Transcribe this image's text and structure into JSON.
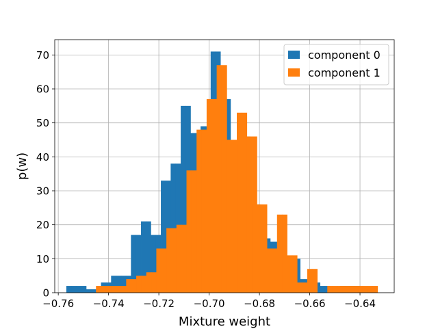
{
  "chart_data": {
    "type": "bar",
    "subtype": "histogram",
    "title": "",
    "xlabel": "Mixture weight",
    "ylabel": "p(w)",
    "xlim": [
      -0.7614,
      -0.6264
    ],
    "ylim": [
      0,
      74.5
    ],
    "grid": true,
    "legend_position": "top-right",
    "x_ticks": [
      {
        "value": -0.76,
        "label": "−0.76"
      },
      {
        "value": -0.74,
        "label": "−0.74"
      },
      {
        "value": -0.72,
        "label": "−0.72"
      },
      {
        "value": -0.7,
        "label": "−0.70"
      },
      {
        "value": -0.68,
        "label": "−0.68"
      },
      {
        "value": -0.66,
        "label": "−0.66"
      },
      {
        "value": -0.64,
        "label": "−0.64"
      }
    ],
    "y_ticks": [
      {
        "value": 0,
        "label": "0"
      },
      {
        "value": 10,
        "label": "10"
      },
      {
        "value": 20,
        "label": "20"
      },
      {
        "value": 30,
        "label": "30"
      },
      {
        "value": 40,
        "label": "40"
      },
      {
        "value": 50,
        "label": "50"
      },
      {
        "value": 60,
        "label": "60"
      },
      {
        "value": 70,
        "label": "70"
      }
    ],
    "series": [
      {
        "name": "component 0",
        "color": "#1f77b4",
        "bin_edges": [
          -0.7568,
          -0.7548,
          -0.7528,
          -0.7509,
          -0.7489,
          -0.7469,
          -0.7449,
          -0.743,
          -0.741,
          -0.739,
          -0.737,
          -0.735,
          -0.7331,
          -0.7311,
          -0.7291,
          -0.7271,
          -0.7252,
          -0.7232,
          -0.7212,
          -0.7192,
          -0.7172,
          -0.7153,
          -0.7133,
          -0.7113,
          -0.7093,
          -0.7074,
          -0.7054,
          -0.7034,
          -0.7014,
          -0.6994,
          -0.6975,
          -0.6955,
          -0.6935,
          -0.6915,
          -0.6896,
          -0.6876,
          -0.6856,
          -0.6836,
          -0.6816,
          -0.6797,
          -0.6777,
          -0.6757,
          -0.6737,
          -0.6718,
          -0.6698,
          -0.6678,
          -0.6658,
          -0.6638,
          -0.6619,
          -0.6599,
          -0.6579,
          -0.6559,
          -0.654,
          -0.652,
          -0.65,
          -0.648,
          -0.646,
          -0.6441,
          -0.6421,
          -0.6401,
          -0.6381,
          -0.6362
        ],
        "values": [
          2,
          2,
          2,
          2,
          1,
          1,
          1,
          3,
          3,
          5,
          5,
          5,
          5,
          17,
          17,
          21,
          21,
          17,
          17,
          33,
          33,
          38,
          38,
          55,
          55,
          47,
          47,
          49,
          49,
          71,
          71,
          57,
          57,
          44,
          44,
          46,
          46,
          26,
          26,
          16,
          16,
          15,
          15,
          8,
          8,
          10,
          10,
          4,
          4,
          3,
          3,
          2,
          2,
          1,
          1,
          2,
          2,
          2,
          2,
          1,
          1
        ]
      },
      {
        "name": "component 1",
        "color": "#ff7f0e",
        "bin_edges": [
          -0.745,
          -0.743,
          -0.741,
          -0.739,
          -0.737,
          -0.735,
          -0.733,
          -0.731,
          -0.729,
          -0.727,
          -0.725,
          -0.723,
          -0.721,
          -0.719,
          -0.717,
          -0.715,
          -0.713,
          -0.711,
          -0.709,
          -0.707,
          -0.705,
          -0.703,
          -0.701,
          -0.699,
          -0.697,
          -0.695,
          -0.693,
          -0.691,
          -0.689,
          -0.687,
          -0.685,
          -0.683,
          -0.681,
          -0.679,
          -0.677,
          -0.675,
          -0.673,
          -0.671,
          -0.669,
          -0.667,
          -0.665,
          -0.663,
          -0.661,
          -0.659,
          -0.657,
          -0.655,
          -0.653,
          -0.651,
          -0.649,
          -0.647,
          -0.645,
          -0.643,
          -0.641,
          -0.639,
          -0.637,
          -0.635,
          -0.633
        ],
        "values": [
          2,
          2,
          2,
          2,
          2,
          2,
          4,
          4,
          5,
          5,
          6,
          6,
          13,
          13,
          19,
          19,
          20,
          20,
          36,
          36,
          48,
          48,
          57,
          57,
          67,
          67,
          45,
          45,
          53,
          53,
          46,
          46,
          26,
          26,
          13,
          13,
          23,
          23,
          11,
          11,
          3,
          3,
          7,
          7,
          0,
          0,
          2,
          2,
          2,
          2,
          2,
          2,
          2,
          2,
          2,
          2
        ]
      }
    ]
  }
}
